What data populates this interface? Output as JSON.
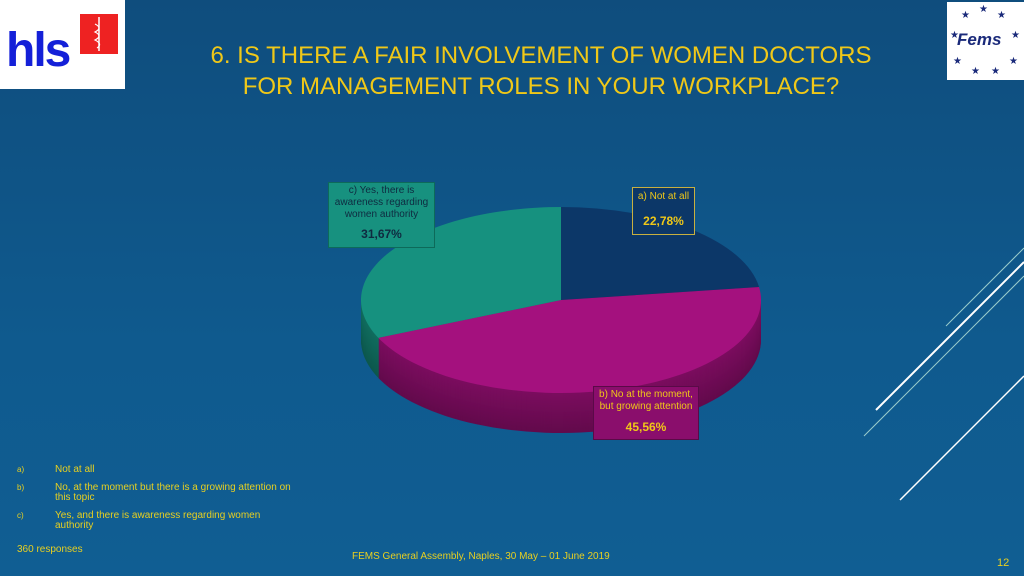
{
  "title_line1": "6. IS THERE A FAIR INVOLVEMENT OF WOMEN DOCTORS",
  "title_line2": "FOR MANAGEMENT ROLES IN YOUR WORKPLACE?",
  "logos": {
    "left": "hls",
    "right": "Fems"
  },
  "chart_data": {
    "type": "pie",
    "title": "6. IS THERE A FAIR INVOLVEMENT OF WOMEN DOCTORS FOR MANAGEMENT ROLES IN YOUR WORKPLACE?",
    "slices": [
      {
        "label": "a) Not at all",
        "value": 22.78,
        "value_label": "22,78%",
        "color": "#0c3768"
      },
      {
        "label": "b) No at the moment, but growing attention",
        "value": 45.56,
        "value_label": "45,56%",
        "color": "#a4117e"
      },
      {
        "label": "c) Yes, there is awareness regarding women authority",
        "value": 31.67,
        "value_label": "31,67%",
        "color": "#16917f"
      }
    ]
  },
  "callouts": {
    "a": {
      "line1": "a) Not at all",
      "pct": "22,78%"
    },
    "b": {
      "line1": "b) No at the moment,",
      "line2": "but growing attention",
      "pct": "45,56%"
    },
    "c": {
      "line1": "c) Yes, there is",
      "line2": "awareness regarding",
      "line3": "women authority",
      "pct": "31,67%"
    }
  },
  "legend": [
    {
      "key": "a)",
      "text": "Not at all"
    },
    {
      "key": "b)",
      "text": "No, at the moment but there is a growing attention on this topic"
    },
    {
      "key": "c)",
      "text": "Yes, and there is awareness regarding women authority"
    }
  ],
  "responses": "360 responses",
  "footer": "FEMS General Assembly, Naples, 30 May – 01 June 2019",
  "page_number": "12"
}
